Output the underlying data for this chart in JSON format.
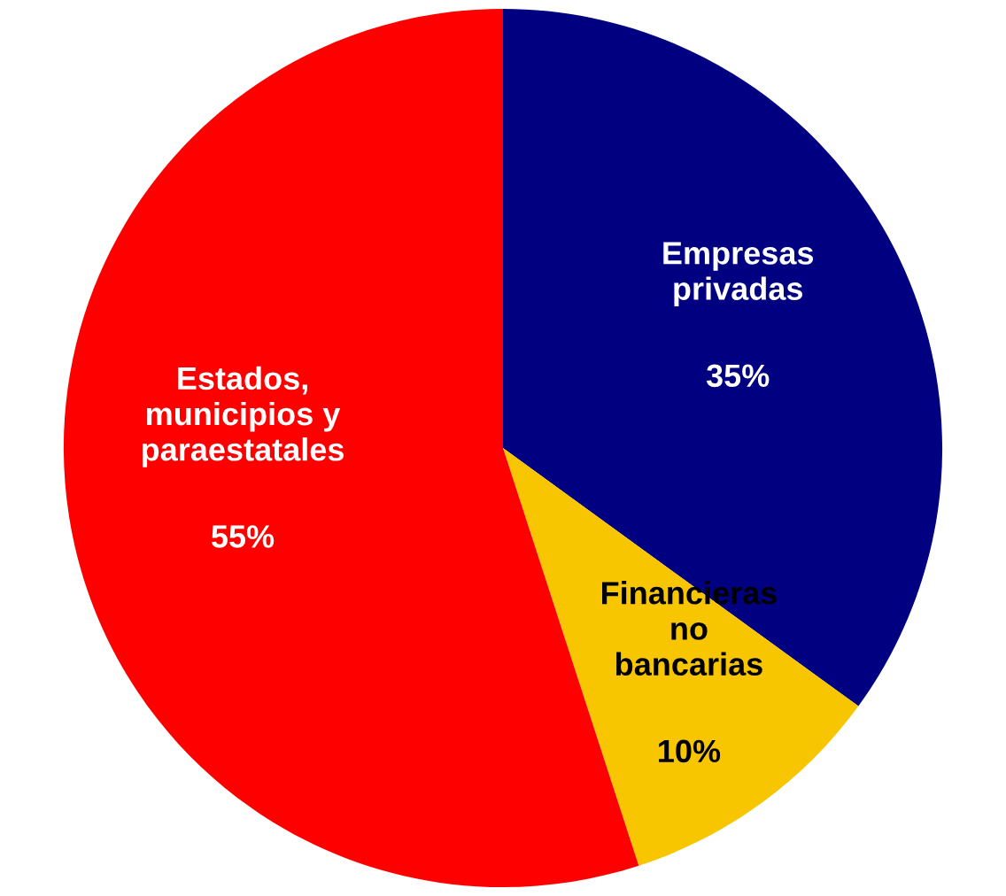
{
  "chart_data": {
    "type": "pie",
    "categories": [
      "Empresas\nprivadas",
      "Financieras\nno\nbancarias",
      "Estados,\nmunicipios y\nparaestatales"
    ],
    "values": [
      35,
      10,
      55
    ],
    "colors": [
      "#000080",
      "#f7c600",
      "#ff0000"
    ],
    "value_labels": [
      "35%",
      "10%",
      "55%"
    ]
  }
}
